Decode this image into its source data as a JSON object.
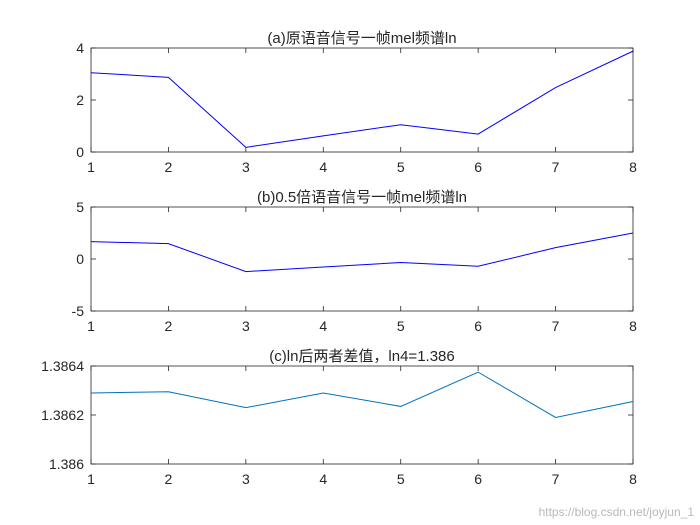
{
  "chart_data": [
    {
      "type": "line",
      "title": "(a)原语音信号一帧mel频谱ln",
      "x": [
        1,
        2,
        3,
        4,
        5,
        6,
        7,
        8
      ],
      "series": [
        {
          "name": "",
          "values": [
            3.05,
            2.87,
            0.18,
            0.62,
            1.05,
            0.69,
            2.48,
            3.88
          ],
          "color": "#0000ff"
        }
      ],
      "xlim": [
        1,
        8
      ],
      "ylim": [
        0,
        4
      ],
      "xticks": [
        "1",
        "2",
        "3",
        "4",
        "5",
        "6",
        "7",
        "8"
      ],
      "yticks": [
        "0",
        "2",
        "4"
      ],
      "yticks_values": [
        0,
        2,
        4
      ],
      "xlabel": "",
      "ylabel": "",
      "grid": false
    },
    {
      "type": "line",
      "title": "(b)0.5倍语音信号一帧mel频谱ln",
      "x": [
        1,
        2,
        3,
        4,
        5,
        6,
        7,
        8
      ],
      "series": [
        {
          "name": "",
          "values": [
            1.67,
            1.48,
            -1.21,
            -0.77,
            -0.34,
            -0.7,
            1.09,
            2.5
          ],
          "color": "#0000ff"
        }
      ],
      "xlim": [
        1,
        8
      ],
      "ylim": [
        -5,
        5
      ],
      "xticks": [
        "1",
        "2",
        "3",
        "4",
        "5",
        "6",
        "7",
        "8"
      ],
      "yticks": [
        "-5",
        "0",
        "5"
      ],
      "yticks_values": [
        -5,
        0,
        5
      ],
      "xlabel": "",
      "ylabel": "",
      "grid": false
    },
    {
      "type": "line",
      "title": "(c)ln后两者差值，ln4=1.386",
      "x": [
        1,
        2,
        3,
        4,
        5,
        6,
        7,
        8
      ],
      "series": [
        {
          "name": "",
          "values": [
            1.38629,
            1.386295,
            1.38623,
            1.38629,
            1.386235,
            1.386375,
            1.38619,
            1.386255
          ],
          "color": "#0072bd"
        }
      ],
      "xlim": [
        1,
        8
      ],
      "ylim": [
        1.386,
        1.3864
      ],
      "xticks": [
        "1",
        "2",
        "3",
        "4",
        "5",
        "6",
        "7",
        "8"
      ],
      "yticks": [
        "1.386",
        "1.3862",
        "1.3864"
      ],
      "yticks_values": [
        1.386,
        1.3862,
        1.3864
      ],
      "xlabel": "",
      "ylabel": "",
      "grid": false
    }
  ],
  "watermark": "https://blog.csdn.net/joyjun_1"
}
